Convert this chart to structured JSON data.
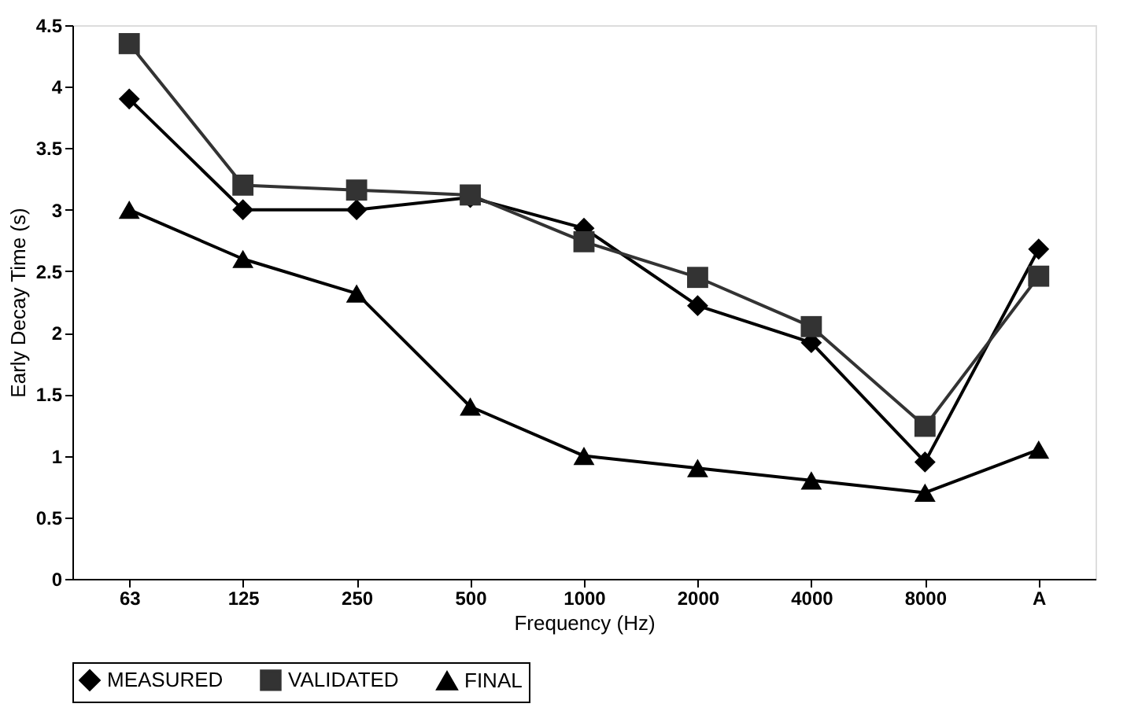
{
  "chart_data": {
    "type": "line",
    "xlabel": "Frequency (Hz)",
    "ylabel": "Early Decay Time (s)",
    "categories": [
      "63",
      "125",
      "250",
      "500",
      "1000",
      "2000",
      "4000",
      "8000",
      "A"
    ],
    "series": [
      {
        "name": "MEASURED",
        "color": "#000000",
        "marker": "diamond",
        "values": [
          3.9,
          3.0,
          3.0,
          3.1,
          2.85,
          2.22,
          1.92,
          0.95,
          2.68
        ]
      },
      {
        "name": "VALIDATED",
        "color": "#333333",
        "marker": "square",
        "values": [
          4.35,
          3.2,
          3.16,
          3.12,
          2.74,
          2.45,
          2.05,
          1.24,
          2.46
        ]
      },
      {
        "name": "FINAL",
        "color": "#000000",
        "marker": "triangle",
        "values": [
          3.0,
          2.6,
          2.32,
          1.4,
          1.0,
          0.9,
          0.8,
          0.7,
          1.05
        ]
      }
    ],
    "ylim": [
      0,
      4.5
    ],
    "yticks": [
      0,
      0.5,
      1,
      1.5,
      2,
      2.5,
      3,
      3.5,
      4,
      4.5
    ],
    "grid": false,
    "legend": "bottom",
    "line_style": "solid"
  }
}
